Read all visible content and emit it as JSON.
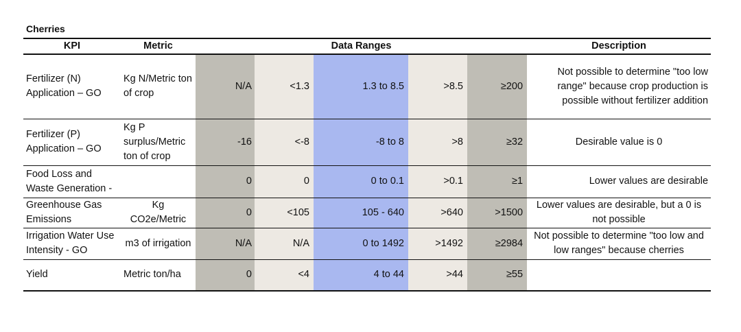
{
  "title": "Cherries",
  "headers": {
    "kpi": "KPI",
    "metric": "Metric",
    "ranges": "Data Ranges",
    "description": "Description"
  },
  "colors": {
    "very_low_very_high": "#bfbdb5",
    "low_high": "#ede9e3",
    "desirable": "#a9b8f0"
  },
  "rows": [
    {
      "kpi": "Fertilizer (N) Application – GO",
      "metric": "Kg N/Metric ton of crop",
      "ranges": [
        "N/A",
        "<1.3",
        "1.3 to 8.5",
        ">8.5",
        "≥200"
      ],
      "description": "Not possible to determine \"too low range\" because crop production is possible without fertilizer addition"
    },
    {
      "kpi": "Fertilizer (P) Application – GO",
      "metric": "Kg P surplus/Metric ton of crop",
      "ranges": [
        "-16",
        "<-8",
        "-8 to 8",
        ">8",
        "≥32"
      ],
      "description": "Desirable value is 0"
    },
    {
      "kpi": "Food Loss and Waste Generation -",
      "metric": "",
      "ranges": [
        "0",
        "0",
        "0 to 0.1",
        ">0.1",
        "≥1"
      ],
      "description": "Lower values are desirable"
    },
    {
      "kpi": "Greenhouse Gas Emissions",
      "metric": "Kg CO2e/Metric",
      "ranges": [
        "0",
        "<105",
        "105 - 640",
        ">640",
        ">1500"
      ],
      "description": "Lower values are desirable, but a 0 is not possible"
    },
    {
      "kpi": "Irrigation Water Use Intensity - GO",
      "metric": "m3 of irrigation",
      "ranges": [
        "N/A",
        "N/A",
        "0 to 1492",
        ">1492",
        "≥2984"
      ],
      "description": "Not possible to determine \"too low and low ranges\" because cherries"
    },
    {
      "kpi": "Yield",
      "metric": "Metric ton/ha",
      "ranges": [
        "0",
        "<4",
        "4  to 44",
        ">44",
        "≥55"
      ],
      "description": ""
    }
  ]
}
